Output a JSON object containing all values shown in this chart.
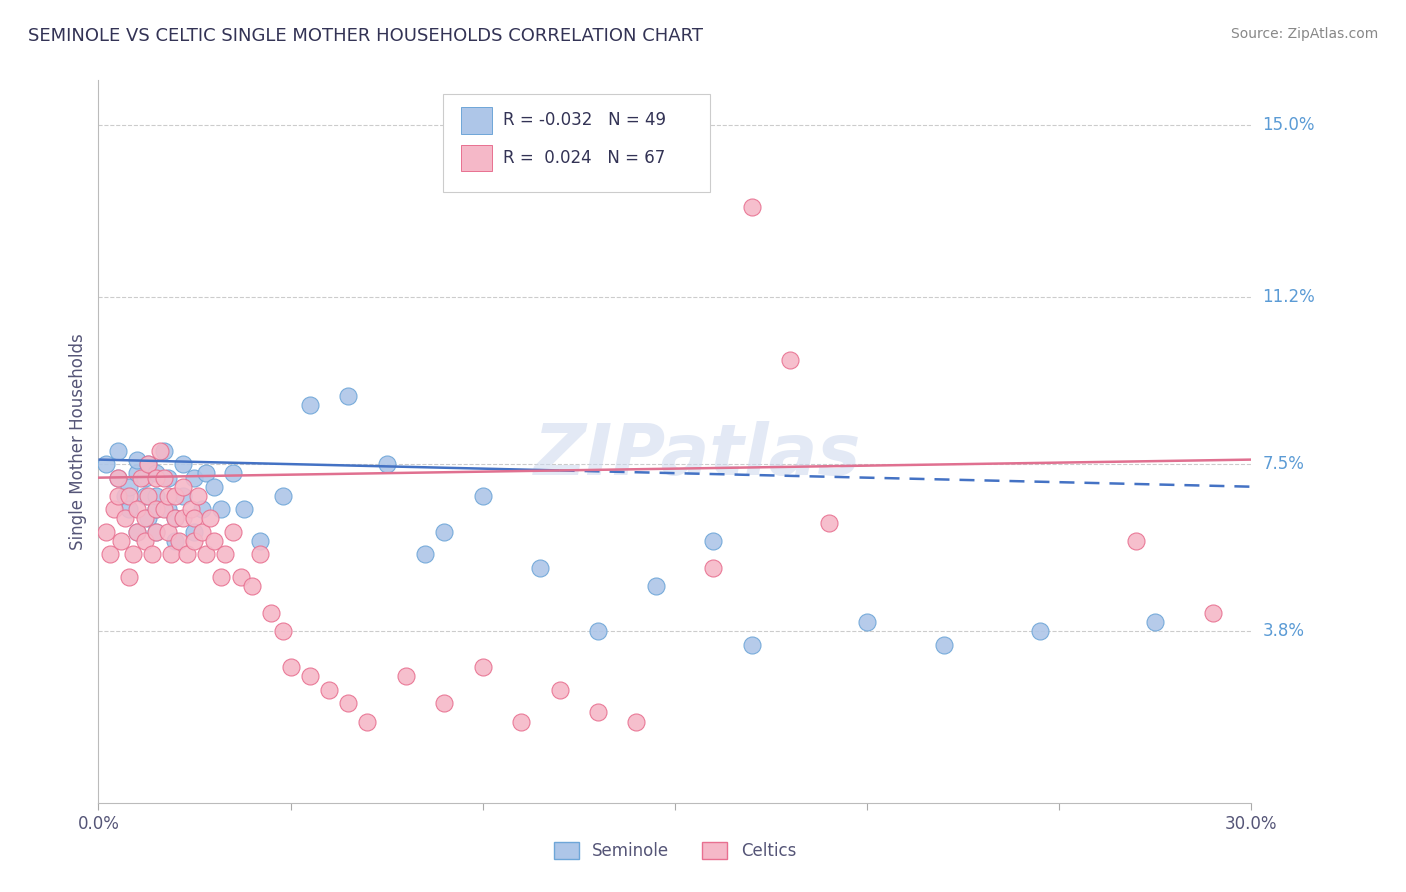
{
  "title": "SEMINOLE VS CELTIC SINGLE MOTHER HOUSEHOLDS CORRELATION CHART",
  "source": "Source: ZipAtlas.com",
  "ylabel": "Single Mother Households",
  "xlim": [
    0.0,
    0.3
  ],
  "ylim": [
    0.0,
    0.16
  ],
  "seminole_R": -0.032,
  "seminole_N": 49,
  "celtics_R": 0.024,
  "celtics_N": 67,
  "seminole_color": "#aec6e8",
  "celtics_color": "#f5b8c8",
  "seminole_edge": "#6ea6d8",
  "celtics_edge": "#e87090",
  "seminole_line_color": "#4472c4",
  "celtics_line_color": "#e07090",
  "watermark": "ZIPatlas",
  "background_color": "#ffffff",
  "grid_color": "#cccccc",
  "ytick_positions": [
    0.038,
    0.075,
    0.112,
    0.15
  ],
  "ytick_labels": [
    "3.8%",
    "7.5%",
    "11.2%",
    "15.0%"
  ],
  "seminole_x": [
    0.002,
    0.005,
    0.005,
    0.007,
    0.008,
    0.008,
    0.01,
    0.01,
    0.01,
    0.012,
    0.012,
    0.013,
    0.013,
    0.015,
    0.015,
    0.015,
    0.015,
    0.017,
    0.018,
    0.018,
    0.02,
    0.02,
    0.022,
    0.022,
    0.025,
    0.025,
    0.027,
    0.028,
    0.03,
    0.032,
    0.035,
    0.038,
    0.042,
    0.048,
    0.055,
    0.065,
    0.075,
    0.085,
    0.09,
    0.1,
    0.115,
    0.13,
    0.145,
    0.16,
    0.17,
    0.2,
    0.22,
    0.245,
    0.275
  ],
  "seminole_y": [
    0.075,
    0.072,
    0.078,
    0.068,
    0.065,
    0.07,
    0.06,
    0.073,
    0.076,
    0.068,
    0.072,
    0.063,
    0.075,
    0.06,
    0.065,
    0.068,
    0.073,
    0.078,
    0.065,
    0.072,
    0.058,
    0.063,
    0.068,
    0.075,
    0.06,
    0.072,
    0.065,
    0.073,
    0.07,
    0.065,
    0.073,
    0.065,
    0.058,
    0.068,
    0.088,
    0.09,
    0.075,
    0.055,
    0.06,
    0.068,
    0.052,
    0.038,
    0.048,
    0.058,
    0.035,
    0.04,
    0.035,
    0.038,
    0.04
  ],
  "celtics_x": [
    0.002,
    0.003,
    0.004,
    0.005,
    0.005,
    0.006,
    0.007,
    0.008,
    0.008,
    0.009,
    0.01,
    0.01,
    0.011,
    0.012,
    0.012,
    0.013,
    0.013,
    0.014,
    0.015,
    0.015,
    0.015,
    0.016,
    0.017,
    0.017,
    0.018,
    0.018,
    0.019,
    0.02,
    0.02,
    0.021,
    0.022,
    0.022,
    0.023,
    0.024,
    0.025,
    0.025,
    0.026,
    0.027,
    0.028,
    0.029,
    0.03,
    0.032,
    0.033,
    0.035,
    0.037,
    0.04,
    0.042,
    0.045,
    0.048,
    0.05,
    0.055,
    0.06,
    0.065,
    0.07,
    0.08,
    0.09,
    0.1,
    0.11,
    0.12,
    0.13,
    0.14,
    0.16,
    0.17,
    0.18,
    0.19,
    0.27,
    0.29
  ],
  "celtics_y": [
    0.06,
    0.055,
    0.065,
    0.068,
    0.072,
    0.058,
    0.063,
    0.05,
    0.068,
    0.055,
    0.06,
    0.065,
    0.072,
    0.058,
    0.063,
    0.068,
    0.075,
    0.055,
    0.06,
    0.065,
    0.072,
    0.078,
    0.065,
    0.072,
    0.06,
    0.068,
    0.055,
    0.063,
    0.068,
    0.058,
    0.063,
    0.07,
    0.055,
    0.065,
    0.058,
    0.063,
    0.068,
    0.06,
    0.055,
    0.063,
    0.058,
    0.05,
    0.055,
    0.06,
    0.05,
    0.048,
    0.055,
    0.042,
    0.038,
    0.03,
    0.028,
    0.025,
    0.022,
    0.018,
    0.028,
    0.022,
    0.03,
    0.018,
    0.025,
    0.02,
    0.018,
    0.052,
    0.132,
    0.098,
    0.062,
    0.058,
    0.042
  ]
}
